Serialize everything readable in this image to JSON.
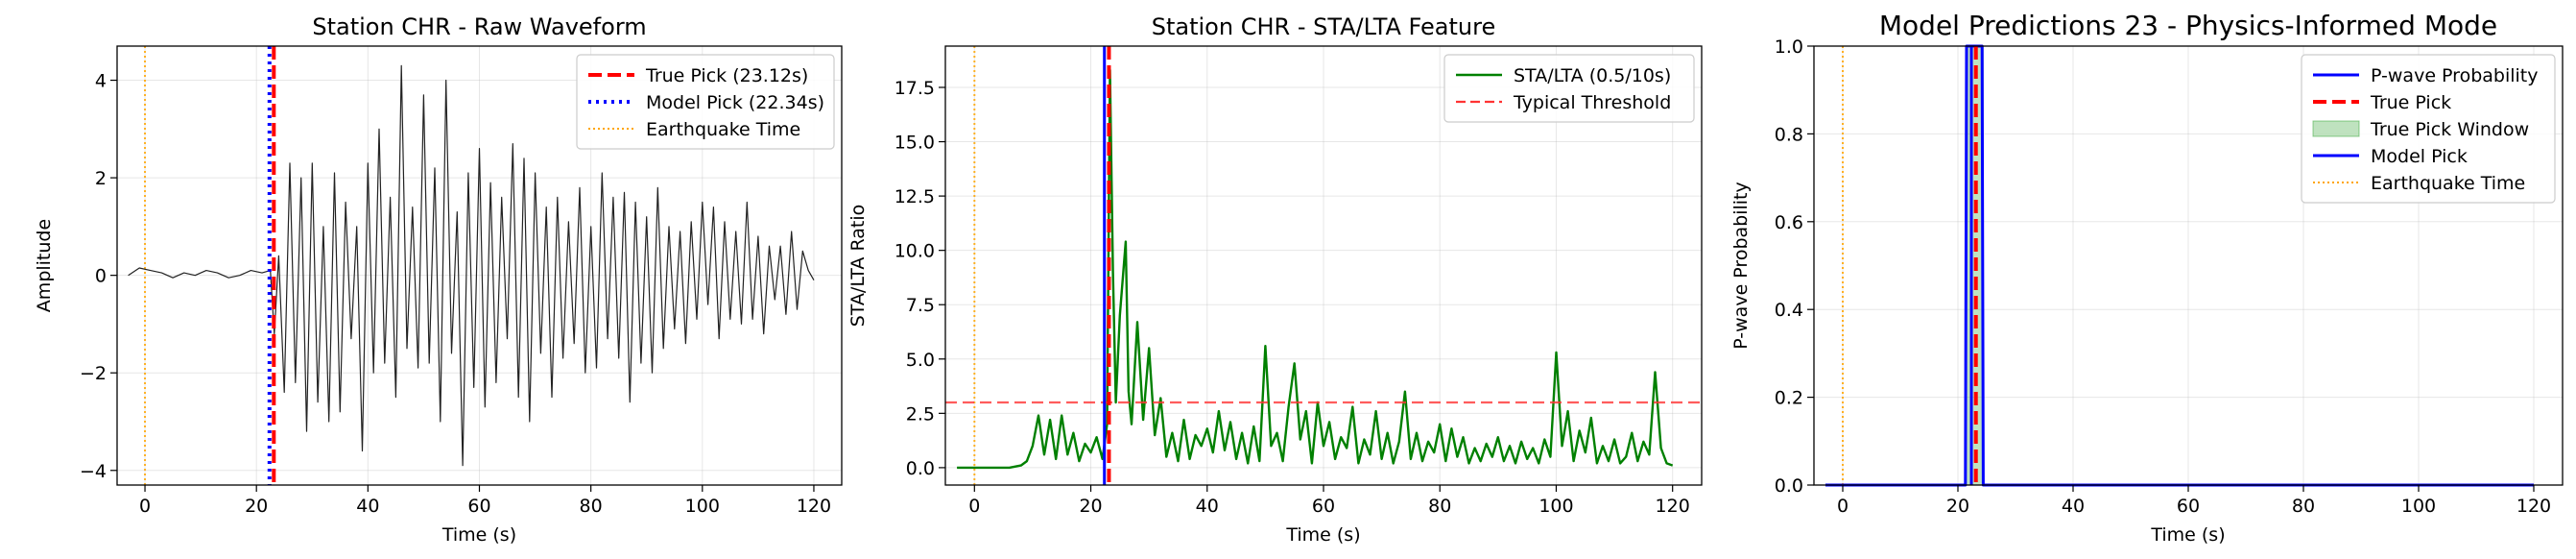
{
  "chart_data": [
    {
      "type": "line",
      "title": "Station CHR - Raw Waveform",
      "xlabel": "Time (s)",
      "ylabel": "Amplitude",
      "xlim": [
        -5,
        125
      ],
      "ylim": [
        -4.3,
        4.7
      ],
      "xticks": [
        0,
        20,
        40,
        60,
        80,
        100,
        120
      ],
      "xtick_labels": [
        "0",
        "20",
        "40",
        "60",
        "80",
        "100",
        "120"
      ],
      "yticks": [
        -4,
        -2,
        0,
        2,
        4
      ],
      "ytick_labels": [
        "−4",
        "−2",
        "0",
        "2",
        "4"
      ],
      "grid": true,
      "legend_position": "top-right",
      "legend": [
        "True Pick (23.12s)",
        "Model Pick (22.34s)",
        "Earthquake Time"
      ],
      "colors": {
        "waveform": "#222222",
        "true_pick": "#ff0000",
        "model_pick": "#0000ff",
        "earthquake": "#ffa500"
      },
      "series": [
        {
          "x": [
            -3,
            -1,
            1,
            3,
            5,
            7,
            9,
            11,
            13,
            15,
            17,
            19,
            21,
            22.5,
            23.2,
            24,
            25,
            26,
            27,
            28,
            29,
            30,
            31,
            32,
            33,
            34,
            35,
            36,
            37,
            38,
            39,
            40,
            41,
            42,
            43,
            44,
            45,
            46,
            47,
            48,
            49,
            50,
            51,
            52,
            53,
            54,
            55,
            56,
            57,
            58,
            59,
            60,
            61,
            62,
            63,
            64,
            65,
            66,
            67,
            68,
            69,
            70,
            71,
            72,
            73,
            74,
            75,
            76,
            77,
            78,
            79,
            80,
            81,
            82,
            83,
            84,
            85,
            86,
            87,
            88,
            89,
            90,
            91,
            92,
            93,
            94,
            95,
            96,
            97,
            98,
            99,
            100,
            101,
            102,
            103,
            104,
            105,
            106,
            107,
            108,
            109,
            110,
            111,
            112,
            113,
            114,
            115,
            116,
            117,
            118,
            119,
            120
          ],
          "y": [
            0.0,
            0.15,
            0.1,
            0.05,
            -0.05,
            0.05,
            0.0,
            0.1,
            0.05,
            -0.05,
            0.0,
            0.1,
            0.05,
            0.1,
            -1.2,
            0.4,
            -2.4,
            2.3,
            -2.2,
            2.0,
            -3.2,
            2.3,
            -2.6,
            1.0,
            -3.0,
            2.1,
            -2.8,
            1.5,
            -1.3,
            1.0,
            -3.6,
            2.3,
            -2.0,
            3.0,
            -1.8,
            1.6,
            -2.5,
            4.3,
            -1.5,
            1.4,
            -1.9,
            3.7,
            -1.8,
            2.2,
            -3.0,
            4.0,
            -1.6,
            1.3,
            -3.9,
            2.1,
            -2.3,
            2.6,
            -2.7,
            1.9,
            -2.2,
            1.6,
            -1.3,
            2.7,
            -2.5,
            2.4,
            -3.0,
            2.1,
            -1.6,
            1.4,
            -2.5,
            1.6,
            -1.7,
            1.1,
            -1.4,
            1.8,
            -2.0,
            1.0,
            -1.9,
            2.1,
            -1.3,
            1.6,
            -1.7,
            1.7,
            -2.6,
            1.5,
            -1.8,
            1.2,
            -2.0,
            1.8,
            -1.5,
            1.0,
            -1.1,
            0.9,
            -1.4,
            1.1,
            -0.9,
            1.5,
            -0.6,
            1.4,
            -1.3,
            1.1,
            -0.9,
            0.9,
            -1.0,
            1.5,
            -0.9,
            0.8,
            -1.2,
            0.6,
            -0.5,
            0.6,
            -0.8,
            0.9,
            -0.7,
            0.5,
            0.1,
            -0.1
          ]
        }
      ],
      "vlines": {
        "true_pick": 23.12,
        "model_pick": 22.34,
        "earthquake": 0
      }
    },
    {
      "type": "line",
      "title": "Station CHR - STA/LTA Feature",
      "xlabel": "Time (s)",
      "ylabel": "STA/LTA Ratio",
      "xlim": [
        -5,
        125
      ],
      "ylim": [
        -0.8,
        19.4
      ],
      "xticks": [
        0,
        20,
        40,
        60,
        80,
        100,
        120
      ],
      "xtick_labels": [
        "0",
        "20",
        "40",
        "60",
        "80",
        "100",
        "120"
      ],
      "yticks": [
        0.0,
        2.5,
        5.0,
        7.5,
        10.0,
        12.5,
        15.0,
        17.5
      ],
      "ytick_labels": [
        "0.0",
        "2.5",
        "5.0",
        "7.5",
        "10.0",
        "12.5",
        "15.0",
        "17.5"
      ],
      "grid": true,
      "legend_position": "top-right",
      "legend": [
        "STA/LTA (0.5/10s)",
        "Typical Threshold"
      ],
      "threshold": 3.0,
      "colors": {
        "stalta": "#008000",
        "threshold": "#ff3333",
        "true_pick": "#ff0000",
        "model_pick": "#0000ff",
        "earthquake": "#ffa500"
      },
      "series": [
        {
          "name": "STA/LTA (0.5/10s)",
          "x": [
            -3,
            0,
            3,
            6,
            8,
            9,
            10,
            11,
            12,
            13,
            14,
            15,
            16,
            17,
            18,
            19,
            20,
            21,
            22,
            22.8,
            23.3,
            23.8,
            24.3,
            25,
            26,
            26.5,
            27,
            28,
            29,
            30,
            31,
            32,
            33,
            34,
            35,
            36,
            37,
            38,
            39,
            40,
            41,
            42,
            43,
            44,
            45,
            46,
            47,
            48,
            49,
            50,
            51,
            52,
            53,
            54,
            55,
            56,
            57,
            58,
            59,
            60,
            61,
            62,
            63,
            64,
            65,
            66,
            67,
            68,
            69,
            70,
            71,
            72,
            73,
            74,
            75,
            76,
            77,
            78,
            79,
            80,
            81,
            82,
            83,
            84,
            85,
            86,
            87,
            88,
            89,
            90,
            91,
            92,
            93,
            94,
            95,
            96,
            97,
            98,
            99,
            100,
            101,
            102,
            103,
            104,
            105,
            106,
            107,
            108,
            109,
            110,
            111,
            112,
            113,
            114,
            115,
            116,
            117,
            118,
            119,
            120
          ],
          "y": [
            0,
            0,
            0,
            0,
            0.1,
            0.3,
            1.0,
            2.4,
            0.6,
            2.2,
            0.4,
            2.4,
            0.6,
            1.6,
            0.3,
            1.1,
            0.7,
            1.4,
            0.4,
            2.0,
            18.3,
            9.0,
            3.0,
            7.0,
            10.4,
            3.5,
            2.0,
            6.7,
            2.2,
            5.5,
            1.5,
            3.2,
            0.5,
            1.6,
            0.3,
            2.2,
            0.4,
            1.5,
            1.0,
            1.8,
            0.7,
            2.6,
            0.8,
            2.1,
            0.4,
            1.6,
            0.2,
            1.9,
            0.3,
            5.6,
            1.0,
            1.6,
            0.3,
            2.8,
            4.8,
            1.3,
            2.6,
            0.2,
            3.0,
            1.0,
            2.1,
            0.4,
            1.4,
            0.9,
            2.8,
            0.2,
            1.3,
            0.6,
            2.6,
            0.4,
            1.6,
            0.2,
            1.2,
            3.5,
            0.4,
            1.6,
            0.3,
            1.2,
            0.7,
            2.0,
            0.3,
            1.8,
            0.5,
            1.4,
            0.2,
            0.9,
            0.3,
            1.1,
            0.5,
            1.4,
            0.3,
            1.0,
            0.2,
            1.2,
            0.4,
            0.9,
            0.2,
            1.3,
            0.5,
            5.3,
            1.0,
            2.6,
            0.3,
            1.7,
            0.7,
            2.3,
            0.2,
            1.0,
            0.3,
            1.3,
            0.2,
            0.5,
            1.6,
            0.3,
            1.2,
            0.6,
            4.4,
            0.9,
            0.2,
            0.1
          ]
        }
      ],
      "vlines": {
        "true_pick": 23.12,
        "model_pick": 22.34,
        "earthquake": 0
      }
    },
    {
      "type": "line",
      "title": "Model Predictions 23 - Physics-Informed Mode",
      "xlabel": "Time (s)",
      "ylabel": "P-wave Probability",
      "xlim": [
        -5,
        125
      ],
      "ylim": [
        0,
        1
      ],
      "xticks": [
        0,
        20,
        40,
        60,
        80,
        100,
        120
      ],
      "xtick_labels": [
        "0",
        "20",
        "40",
        "60",
        "80",
        "100",
        "120"
      ],
      "yticks": [
        0.0,
        0.2,
        0.4,
        0.6,
        0.8,
        1.0
      ],
      "ytick_labels": [
        "0.0",
        "0.2",
        "0.4",
        "0.6",
        "0.8",
        "1.0"
      ],
      "grid": true,
      "legend_position": "top-right",
      "legend": [
        "P-wave Probability",
        "True Pick",
        "True Pick Window",
        "Model Pick",
        "Earthquake Time"
      ],
      "colors": {
        "probability": "#0000ff",
        "true_pick": "#ff0000",
        "window": "#2ca02c",
        "model_pick": "#0000ff",
        "earthquake": "#ffa500"
      },
      "series": [
        {
          "name": "P-wave Probability",
          "x": [
            -3,
            21.3,
            21.5,
            21.7,
            24.2,
            24.4,
            120
          ],
          "y": [
            0,
            0,
            1,
            1,
            1,
            0,
            0
          ]
        }
      ],
      "true_pick_window": [
        21.5,
        24.5
      ],
      "vlines": {
        "true_pick": 23.12,
        "model_pick": 22.34,
        "earthquake": 0
      }
    }
  ]
}
